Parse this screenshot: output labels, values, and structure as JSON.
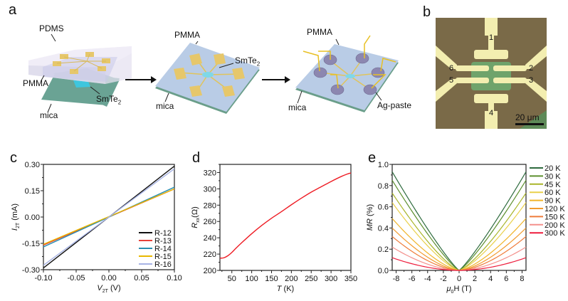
{
  "panels": {
    "a": {
      "label": "a",
      "step1": {
        "pdms": "PDMS",
        "pmma": "PMMA",
        "mica": "mica",
        "flake": "SmTe",
        "flake_sub": "2"
      },
      "step2": {
        "pmma": "PMMA",
        "mica": "mica",
        "flake": "SmTe",
        "flake_sub": "2"
      },
      "step3": {
        "pmma": "PMMA",
        "mica": "mica",
        "paste": "Ag-paste"
      },
      "arrow_icon": "right-arrow-icon"
    },
    "b": {
      "label": "b",
      "electrodes": [
        "1",
        "2",
        "3",
        "4",
        "5",
        "6"
      ],
      "scalebar": "20 μm",
      "colors": {
        "substrate": "#7a6a48",
        "electrode": "#f3eeb0",
        "flake": "#6fa36b"
      }
    },
    "c": {
      "label": "c"
    },
    "d": {
      "label": "d"
    },
    "e": {
      "label": "e"
    }
  },
  "chart_data": [
    {
      "id": "c",
      "type": "line",
      "title": "",
      "xlabel": "V",
      "xlabel_sub": "2T",
      "xlabel_unit": " (V)",
      "ylabel": "I",
      "ylabel_sub": "2T",
      "ylabel_unit": " (mA)",
      "xlim": [
        -0.1,
        0.1
      ],
      "ylim": [
        -0.3,
        0.3
      ],
      "xticks": [
        "-0.10",
        "-0.05",
        "0.00",
        "0.05",
        "0.10"
      ],
      "xtick_values": [
        -0.1,
        -0.05,
        0.0,
        0.05,
        0.1
      ],
      "yticks": [
        "-0.30",
        "-0.15",
        "0.00",
        "0.15",
        "0.30"
      ],
      "ytick_values": [
        -0.3,
        -0.15,
        0.0,
        0.15,
        0.3
      ],
      "legend_position": "bottom-right",
      "grid": false,
      "series": [
        {
          "name": "R-12",
          "color": "#111111",
          "x": [
            -0.1,
            0.1
          ],
          "y": [
            -0.29,
            0.29
          ]
        },
        {
          "name": "R-13",
          "color": "#e8423a",
          "x": [
            -0.1,
            0.1
          ],
          "y": [
            -0.16,
            0.16
          ]
        },
        {
          "name": "R-14",
          "color": "#2a8fb0",
          "x": [
            -0.1,
            0.1
          ],
          "y": [
            -0.17,
            0.17
          ]
        },
        {
          "name": "R-15",
          "color": "#e8b800",
          "x": [
            -0.1,
            0.1
          ],
          "y": [
            -0.155,
            0.16
          ]
        },
        {
          "name": "R-16",
          "color": "#a7b3e4",
          "x": [
            -0.1,
            0.1
          ],
          "y": [
            -0.275,
            0.275
          ]
        }
      ]
    },
    {
      "id": "d",
      "type": "line",
      "title": "",
      "xlabel": "T",
      "xlabel_unit": " (K)",
      "ylabel": "R",
      "ylabel_sub": "xx",
      "ylabel_unit": "(Ω)",
      "xlim": [
        20,
        350
      ],
      "ylim": [
        200,
        330
      ],
      "xticks": [
        "50",
        "100",
        "150",
        "200",
        "250",
        "300",
        "350"
      ],
      "xtick_values": [
        50,
        100,
        150,
        200,
        250,
        300,
        350
      ],
      "yticks": [
        "200",
        "220",
        "240",
        "260",
        "280",
        "300",
        "320"
      ],
      "ytick_values": [
        200,
        220,
        240,
        260,
        280,
        300,
        320
      ],
      "legend_position": "none",
      "grid": false,
      "series": [
        {
          "name": "Rxx",
          "color": "#ee1c24",
          "x": [
            20,
            30,
            40,
            50,
            60,
            75,
            100,
            125,
            150,
            175,
            200,
            225,
            250,
            275,
            300,
            325,
            340,
            350
          ],
          "y": [
            215,
            215.5,
            218,
            222,
            227,
            234,
            245,
            255,
            264,
            272,
            280.5,
            288.5,
            296,
            302.5,
            309,
            315,
            318,
            319.5
          ]
        }
      ]
    },
    {
      "id": "e",
      "type": "line",
      "title": "",
      "xlabel": "μ",
      "xlabel_sub": "0",
      "xlabel_unit": "H (T)",
      "ylabel": "MR",
      "ylabel_unit": " (%)",
      "xlim": [
        -8.5,
        8.5
      ],
      "ylim": [
        0,
        1.0
      ],
      "xticks": [
        "-8",
        "-6",
        "-4",
        "-2",
        "0",
        "2",
        "4",
        "6",
        "8"
      ],
      "xtick_values": [
        -8,
        -6,
        -4,
        -2,
        0,
        2,
        4,
        6,
        8
      ],
      "yticks": [
        "0.0",
        "0.2",
        "0.4",
        "0.6",
        "0.8",
        "1.0"
      ],
      "ytick_values": [
        0.0,
        0.2,
        0.4,
        0.6,
        0.8,
        1.0
      ],
      "legend_position": "right-outside",
      "grid": false,
      "series": [
        {
          "name": "20 K",
          "color": "#2e6b3e",
          "max": 0.93,
          "power": 1.15
        },
        {
          "name": "30 K",
          "color": "#5c8f2e",
          "max": 0.85,
          "power": 1.2
        },
        {
          "name": "45 K",
          "color": "#a9b52a",
          "max": 0.73,
          "power": 1.3
        },
        {
          "name": "60 K",
          "color": "#e9d04a",
          "max": 0.64,
          "power": 1.35
        },
        {
          "name": "90 K",
          "color": "#f0b429",
          "max": 0.49,
          "power": 1.45
        },
        {
          "name": "120 K",
          "color": "#f29b2e",
          "max": 0.4,
          "power": 1.55
        },
        {
          "name": "150 K",
          "color": "#ef7c3a",
          "max": 0.32,
          "power": 1.65
        },
        {
          "name": "200 K",
          "color": "#f4908c",
          "max": 0.22,
          "power": 1.75
        },
        {
          "name": "300 K",
          "color": "#ee1c3c",
          "max": 0.12,
          "power": 1.85
        }
      ]
    }
  ]
}
